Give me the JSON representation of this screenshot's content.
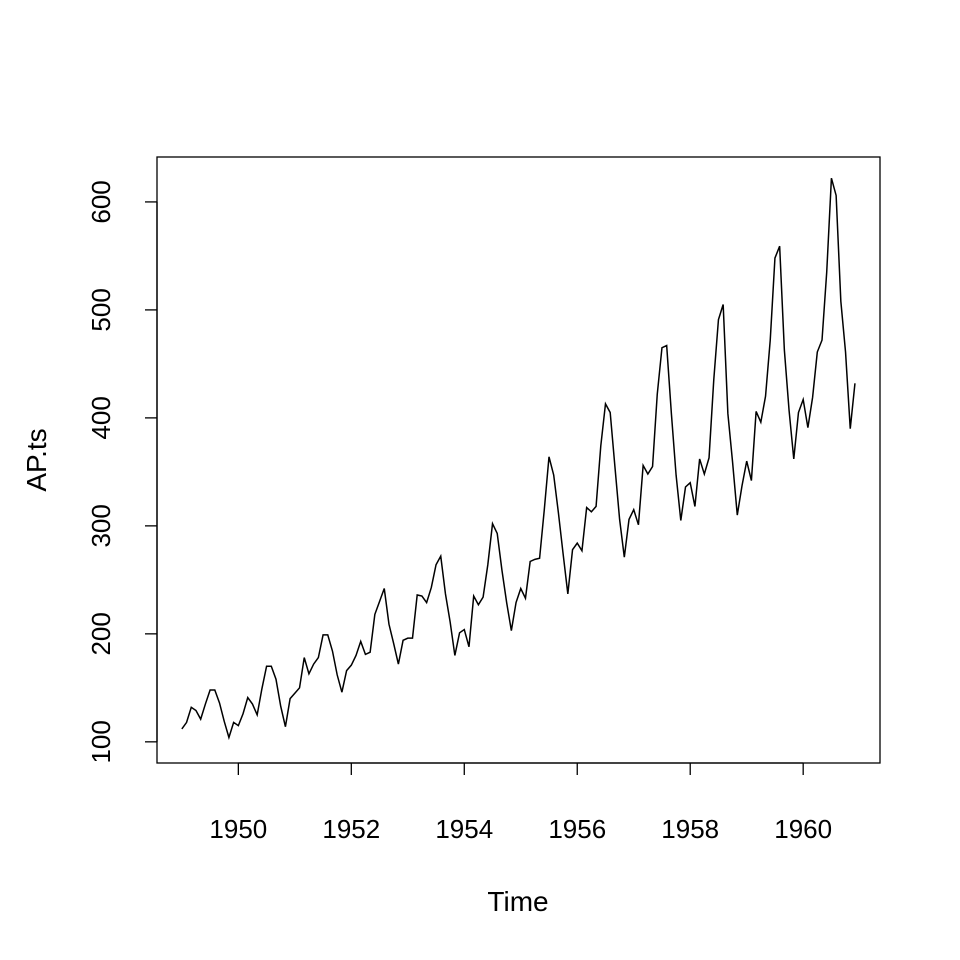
{
  "chart_data": {
    "type": "line",
    "title": "",
    "xlabel": "Time",
    "ylabel": "AP.ts",
    "xlim": [
      1948.56,
      1961.36
    ],
    "ylim": [
      80.4,
      641.6
    ],
    "x_start": 1949,
    "frequency": 12,
    "x_ticks": [
      1950,
      1952,
      1954,
      1956,
      1958,
      1960
    ],
    "y_ticks": [
      100,
      200,
      300,
      400,
      500,
      600
    ],
    "grid": false,
    "series": [
      {
        "name": "AP.ts",
        "color": "#000000",
        "values": [
          112,
          118,
          132,
          129,
          121,
          135,
          148,
          148,
          136,
          119,
          104,
          118,
          115,
          126,
          141,
          135,
          125,
          149,
          170,
          170,
          158,
          133,
          114,
          140,
          145,
          150,
          178,
          163,
          172,
          178,
          199,
          199,
          184,
          162,
          146,
          166,
          171,
          180,
          193,
          181,
          183,
          218,
          230,
          242,
          209,
          191,
          172,
          194,
          196,
          196,
          236,
          235,
          229,
          243,
          264,
          272,
          237,
          211,
          180,
          201,
          204,
          188,
          235,
          227,
          234,
          264,
          302,
          293,
          259,
          229,
          203,
          229,
          242,
          233,
          267,
          269,
          270,
          315,
          364,
          347,
          312,
          274,
          237,
          278,
          284,
          277,
          317,
          313,
          318,
          374,
          413,
          405,
          355,
          306,
          271,
          306,
          315,
          301,
          356,
          348,
          355,
          422,
          465,
          467,
          404,
          347,
          305,
          336,
          340,
          318,
          362,
          348,
          363,
          435,
          491,
          505,
          404,
          359,
          310,
          337,
          360,
          342,
          406,
          396,
          420,
          472,
          548,
          559,
          463,
          407,
          362,
          405,
          417,
          391,
          419,
          461,
          472,
          535,
          622,
          606,
          508,
          461,
          390,
          432
        ]
      }
    ]
  }
}
